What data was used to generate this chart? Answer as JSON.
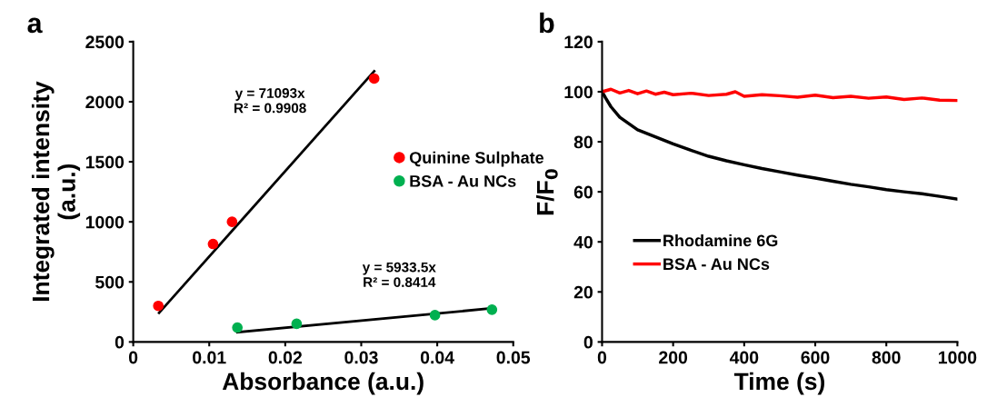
{
  "chart_data": [
    {
      "type": "scatter",
      "title": "a",
      "xlabel": "Absorbance (a.u.)",
      "ylabel": "Integrated intensity\n(a.u.)",
      "xlim": [
        0,
        0.05
      ],
      "xticks": [
        0,
        0.01,
        0.02,
        0.03,
        0.04,
        0.05
      ],
      "ylim": [
        0,
        2500
      ],
      "yticks": [
        0,
        500,
        1000,
        1500,
        2000,
        2500
      ],
      "grid": false,
      "legend": "right",
      "series": [
        {
          "name": "Quinine Sulphate",
          "color": "#ff0000",
          "marker": "circle",
          "x": [
            0.0033,
            0.0105,
            0.013,
            0.0317
          ],
          "values": [
            300,
            816,
            1000,
            2193
          ]
        },
        {
          "name": "BSA - Au NCs",
          "color": "#00b050",
          "marker": "circle",
          "x": [
            0.0137,
            0.0215,
            0.0397,
            0.0472
          ],
          "values": [
            120,
            151,
            223,
            269
          ]
        },
        {
          "type": "line",
          "marker": "none",
          "color": "#000000",
          "x": [
            0.0034,
            0.0317
          ],
          "values": [
            242,
            2254
          ]
        },
        {
          "type": "line",
          "marker": "none",
          "color": "#000000",
          "x": [
            0.0137,
            0.0472
          ],
          "values": [
            81,
            280
          ]
        }
      ],
      "annotations": [
        "y = 71093x\nR² = 0.9908",
        "y = 5933.5x\nR² = 0.8414"
      ]
    },
    {
      "type": "line",
      "title": "b",
      "xlabel": "Time (s)",
      "ylabel": "F/F$_{0}$",
      "xlim": [
        0,
        1000
      ],
      "xticks": [
        0,
        200,
        400,
        600,
        800,
        1000
      ],
      "ylim": [
        0,
        120
      ],
      "yticks": [
        0,
        20,
        40,
        60,
        80,
        100,
        120
      ],
      "grid": false,
      "legend": "left",
      "marker": "none",
      "line_style": "solid",
      "series": [
        {
          "name": "Rhodamine 6G",
          "color": "#000000",
          "x": [
            0,
            10,
            25,
            50,
            100,
            150,
            200,
            250,
            300,
            350,
            400,
            450,
            500,
            550,
            600,
            650,
            700,
            750,
            800,
            850,
            900,
            950,
            1000
          ],
          "values": [
            100,
            97.5,
            94,
            89.8,
            84.8,
            82,
            79.2,
            76.6,
            74.2,
            72.4,
            70.8,
            69.3,
            68,
            66.7,
            65.5,
            64.2,
            63,
            62,
            60.9,
            60,
            59.2,
            58.2,
            57.1
          ]
        },
        {
          "name": "BSA - Au NCs",
          "color": "#ff0000",
          "x": [
            0,
            25,
            50,
            75,
            100,
            125,
            150,
            175,
            200,
            250,
            300,
            350,
            375,
            400,
            450,
            500,
            550,
            600,
            650,
            700,
            750,
            800,
            850,
            900,
            950,
            1000
          ],
          "values": [
            100,
            101,
            99.5,
            100.5,
            99.2,
            100.3,
            99,
            99.8,
            98.8,
            99.4,
            98.5,
            99,
            100,
            98.2,
            98.8,
            98.4,
            97.8,
            98.6,
            97.6,
            98.2,
            97.4,
            97.9,
            96.9,
            97.5,
            96.6,
            96.5
          ]
        }
      ]
    }
  ]
}
